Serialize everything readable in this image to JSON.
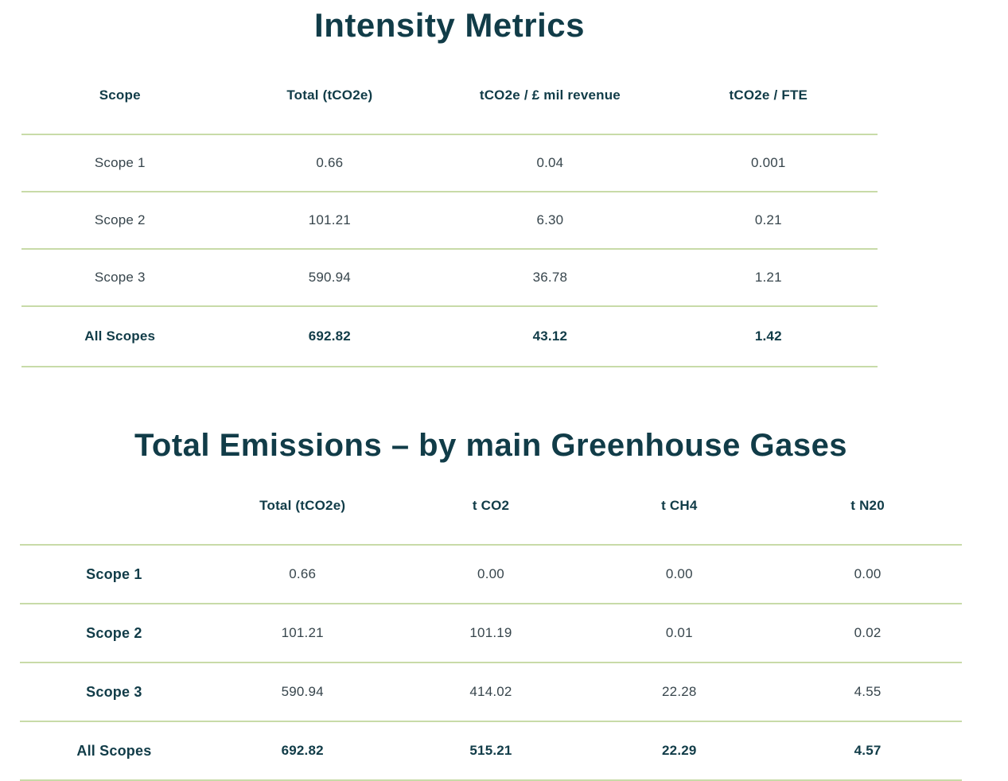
{
  "colors": {
    "heading_teal": "#113c48",
    "body_text": "#37454c",
    "divider_green": "#c8dba8",
    "background": "#ffffff"
  },
  "intensity_metrics": {
    "title": "Intensity Metrics",
    "columns": [
      "Scope",
      "Total (tCO2e)",
      "tCO2e / £ mil revenue",
      "tCO2e / FTE"
    ],
    "label_bold": false,
    "rows": [
      {
        "label": "Scope 1",
        "values": [
          "0.66",
          "0.04",
          "0.001"
        ],
        "total": false
      },
      {
        "label": "Scope 2",
        "values": [
          "101.21",
          "6.30",
          "0.21"
        ],
        "total": false
      },
      {
        "label": "Scope 3",
        "values": [
          "590.94",
          "36.78",
          "1.21"
        ],
        "total": false
      },
      {
        "label": "All Scopes",
        "values": [
          "692.82",
          "43.12",
          "1.42"
        ],
        "total": true
      }
    ]
  },
  "greenhouse_gases": {
    "title": "Total Emissions – by main Greenhouse Gases",
    "columns": [
      "",
      "Total (tCO2e)",
      "t CO2",
      "t CH4",
      "t N20"
    ],
    "label_bold": true,
    "rows": [
      {
        "label": "Scope 1",
        "values": [
          "0.66",
          "0.00",
          "0.00",
          "0.00"
        ],
        "total": false
      },
      {
        "label": "Scope 2",
        "values": [
          "101.21",
          "101.19",
          "0.01",
          "0.02"
        ],
        "total": false
      },
      {
        "label": "Scope 3",
        "values": [
          "590.94",
          "414.02",
          "22.28",
          "4.55"
        ],
        "total": false
      },
      {
        "label": "All Scopes",
        "values": [
          "692.82",
          "515.21",
          "22.29",
          "4.57"
        ],
        "total": true
      }
    ]
  },
  "chart_data": [
    {
      "type": "table",
      "title": "Intensity Metrics",
      "columns": [
        "Scope",
        "Total (tCO2e)",
        "tCO2e / £ mil revenue",
        "tCO2e / FTE"
      ],
      "rows": [
        [
          "Scope 1",
          0.66,
          0.04,
          0.001
        ],
        [
          "Scope 2",
          101.21,
          6.3,
          0.21
        ],
        [
          "Scope 3",
          590.94,
          36.78,
          1.21
        ],
        [
          "All Scopes",
          692.82,
          43.12,
          1.42
        ]
      ]
    },
    {
      "type": "table",
      "title": "Total Emissions – by main Greenhouse Gases",
      "columns": [
        "",
        "Total (tCO2e)",
        "t CO2",
        "t CH4",
        "t N20"
      ],
      "rows": [
        [
          "Scope 1",
          0.66,
          0.0,
          0.0,
          0.0
        ],
        [
          "Scope 2",
          101.21,
          101.19,
          0.01,
          0.02
        ],
        [
          "Scope 3",
          590.94,
          414.02,
          22.28,
          4.55
        ],
        [
          "All Scopes",
          692.82,
          515.21,
          22.29,
          4.57
        ]
      ]
    }
  ]
}
